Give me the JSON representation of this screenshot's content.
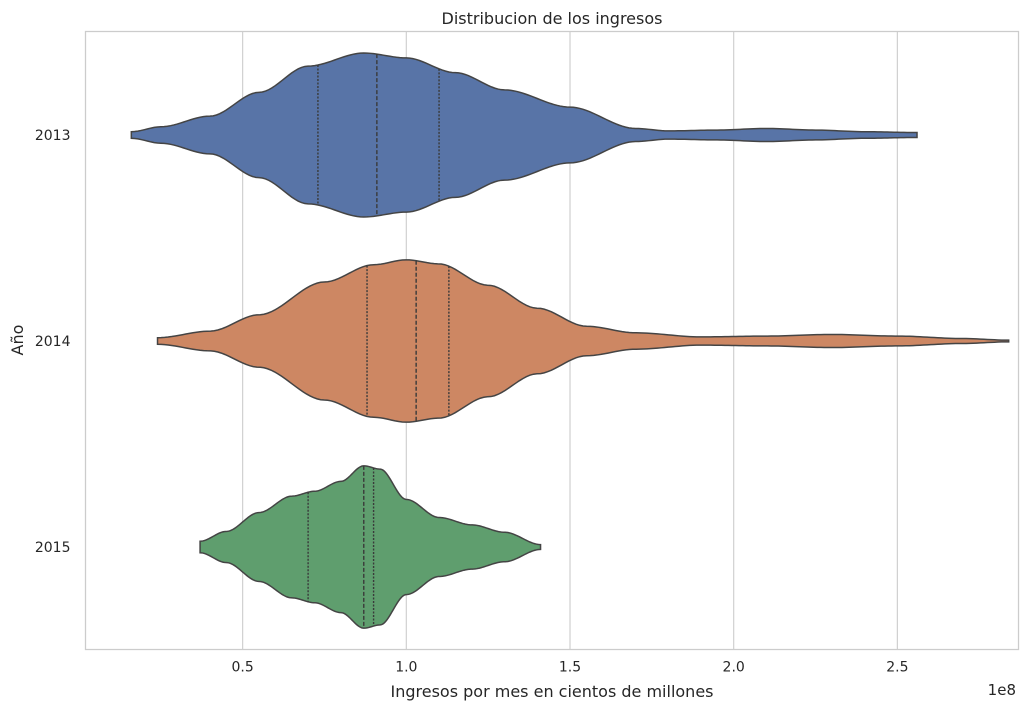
{
  "chart_data": {
    "type": "violin",
    "orientation": "horizontal",
    "title": "Distribucion de los ingresos",
    "xlabel": "Ingresos por mes en cientos de millones",
    "ylabel": "Año",
    "x_offset_label": "1e8",
    "xlim": [
      0.02,
      2.87
    ],
    "xticks": [
      0.5,
      1.0,
      1.5,
      2.0,
      2.5
    ],
    "xtick_labels": [
      "0.5",
      "1.0",
      "1.5",
      "2.0",
      "2.5"
    ],
    "grid": "vertical",
    "categories": [
      "2013",
      "2014",
      "2015"
    ],
    "series": [
      {
        "category": "2013",
        "color": "#5874a7",
        "range": [
          0.16,
          2.56
        ],
        "quartiles": [
          0.73,
          0.91,
          1.1
        ],
        "profile": [
          [
            0.16,
            0.04
          ],
          [
            0.25,
            0.1
          ],
          [
            0.4,
            0.23
          ],
          [
            0.55,
            0.52
          ],
          [
            0.7,
            0.84
          ],
          [
            0.87,
            1.0
          ],
          [
            1.0,
            0.94
          ],
          [
            1.15,
            0.76
          ],
          [
            1.3,
            0.55
          ],
          [
            1.5,
            0.34
          ],
          [
            1.7,
            0.08
          ],
          [
            1.8,
            0.05
          ],
          [
            1.95,
            0.06
          ],
          [
            2.1,
            0.08
          ],
          [
            2.25,
            0.06
          ],
          [
            2.4,
            0.04
          ],
          [
            2.56,
            0.03
          ]
        ]
      },
      {
        "category": "2014",
        "color": "#cd8763",
        "range": [
          0.24,
          2.84
        ],
        "quartiles": [
          0.88,
          1.03,
          1.13
        ],
        "profile": [
          [
            0.24,
            0.04
          ],
          [
            0.4,
            0.12
          ],
          [
            0.55,
            0.32
          ],
          [
            0.75,
            0.72
          ],
          [
            0.9,
            0.93
          ],
          [
            1.0,
            0.99
          ],
          [
            1.1,
            0.94
          ],
          [
            1.25,
            0.68
          ],
          [
            1.4,
            0.4
          ],
          [
            1.55,
            0.18
          ],
          [
            1.7,
            0.1
          ],
          [
            1.9,
            0.05
          ],
          [
            2.1,
            0.06
          ],
          [
            2.3,
            0.08
          ],
          [
            2.5,
            0.06
          ],
          [
            2.7,
            0.03
          ],
          [
            2.84,
            0.01
          ]
        ]
      },
      {
        "category": "2015",
        "color": "#5f9e6e",
        "range": [
          0.37,
          1.41
        ],
        "quartiles": [
          0.7,
          0.87,
          0.9
        ],
        "profile": [
          [
            0.37,
            0.07
          ],
          [
            0.45,
            0.19
          ],
          [
            0.55,
            0.42
          ],
          [
            0.65,
            0.62
          ],
          [
            0.72,
            0.68
          ],
          [
            0.8,
            0.8
          ],
          [
            0.87,
            0.99
          ],
          [
            0.92,
            0.95
          ],
          [
            1.0,
            0.58
          ],
          [
            1.1,
            0.36
          ],
          [
            1.2,
            0.27
          ],
          [
            1.3,
            0.18
          ],
          [
            1.41,
            0.03
          ]
        ]
      }
    ]
  }
}
